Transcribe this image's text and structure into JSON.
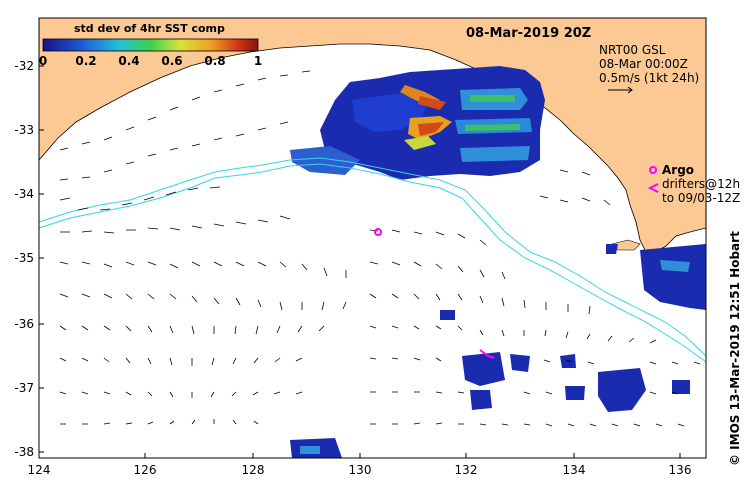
{
  "map": {
    "date_title": "08-Mar-2019 20Z",
    "colorbar": {
      "title": "std dev of 4hr SST comp",
      "ticks": [
        "0",
        "0.2",
        "0.4",
        "0.6",
        "0.8",
        "1"
      ],
      "colors": [
        "#1a0f8a",
        "#1f5bd6",
        "#22c3d8",
        "#3ed14a",
        "#d8e23a",
        "#f0a024",
        "#d63a1a",
        "#8a1010"
      ]
    },
    "current_info": {
      "line1": "NRT00 GSL",
      "line2": "08-Mar 00:00Z",
      "line3": "0.5m/s (1kt 24h)"
    },
    "legend": {
      "argo_label": "Argo",
      "drifters_line1": "drifters@12h",
      "drifters_line2": "to 09/03-12Z",
      "argo_color": "#ff00ff"
    },
    "credit": "© IMOS 13-Mar-2019 12:51 Hobart",
    "y_ticks": [
      "-32",
      "-33",
      "-34",
      "-35",
      "-36",
      "-37",
      "-38"
    ],
    "x_ticks": [
      "124",
      "126",
      "128",
      "130",
      "132",
      "134",
      "136"
    ],
    "land_color": "#fcc994",
    "current_color": "#33d6e8"
  }
}
